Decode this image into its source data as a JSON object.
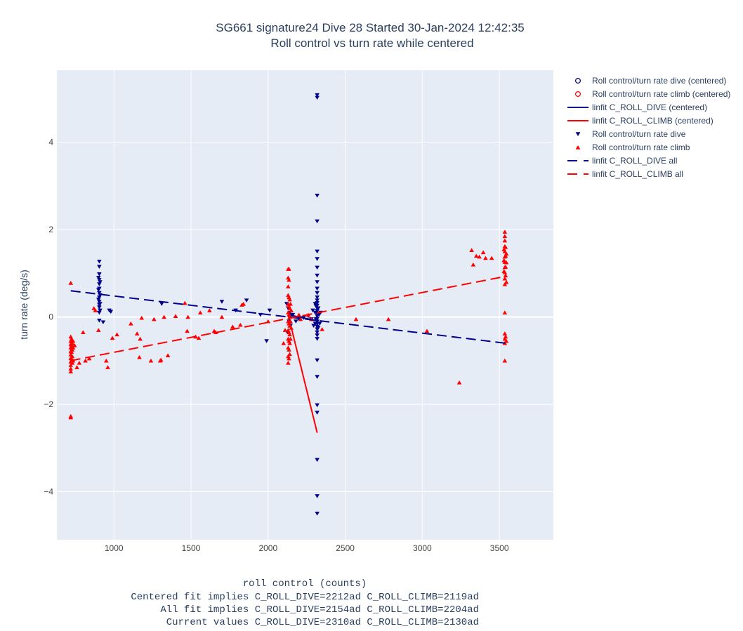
{
  "chart_data": {
    "type": "scatter",
    "title": "SG661 signature24 Dive 28 Started 30-Jan-2024 12:42:35",
    "subtitle": "Roll control vs turn rate while centered",
    "xlabel": "roll control (counts)",
    "xlabel_notes": [
      "Centered fit implies C_ROLL_DIVE=2212ad C_ROLL_CLIMB=2119ad",
      "All fit implies C_ROLL_DIVE=2154ad C_ROLL_CLIMB=2204ad",
      "Current values C_ROLL_DIVE=2310ad C_ROLL_CLIMB=2130ad"
    ],
    "ylabel": "turn rate (deg/s)",
    "xlim": [
      630,
      3850
    ],
    "ylim": [
      -5.1,
      5.65
    ],
    "xticks": [
      1000,
      1500,
      2000,
      2500,
      3000,
      3500
    ],
    "yticks": [
      -4,
      -2,
      0,
      2,
      4
    ],
    "ytick_labels": [
      "−4",
      "−2",
      "0",
      "2",
      "4"
    ],
    "grid": true,
    "legend_position": "right",
    "colors": {
      "dive": "#00008b",
      "climb": "#ff0000",
      "plot_bg": "#e5ecf6",
      "grid": "#ffffff",
      "text": "#2a3f5f"
    },
    "series": [
      {
        "name": "Roll control/turn rate dive (centered)",
        "kind": "points",
        "marker": "circle-open",
        "color": "#00008b",
        "points": []
      },
      {
        "name": "Roll control/turn rate climb (centered)",
        "kind": "points",
        "marker": "circle-open",
        "color": "#ff0000",
        "points": []
      },
      {
        "name": "linfit C_ROLL_DIVE (centered)",
        "kind": "line",
        "dash": "solid",
        "color": "#00008b",
        "points": [
          [
            2130,
            0.05
          ],
          [
            2310,
            -0.08
          ]
        ]
      },
      {
        "name": "linfit C_ROLL_CLIMB (centered)",
        "kind": "line",
        "dash": "solid",
        "color": "#ff0000",
        "points": [
          [
            2130,
            0.05
          ],
          [
            2318,
            -2.65
          ]
        ]
      },
      {
        "name": "Roll control/turn rate dive",
        "kind": "points",
        "marker": "triangle-down",
        "color": "#00008b",
        "points": [
          [
            905,
            1.27
          ],
          [
            905,
            1.15
          ],
          [
            905,
            0.98
          ],
          [
            905,
            0.85
          ],
          [
            905,
            0.75
          ],
          [
            905,
            0.65
          ],
          [
            905,
            0.55
          ],
          [
            905,
            0.45
          ],
          [
            905,
            0.35
          ],
          [
            905,
            0.28
          ],
          [
            905,
            0.22
          ],
          [
            905,
            0.1
          ],
          [
            905,
            -0.08
          ],
          [
            900,
            0.9
          ],
          [
            900,
            0.62
          ],
          [
            900,
            0.4
          ],
          [
            910,
            0.8
          ],
          [
            910,
            0.5
          ],
          [
            910,
            0.3
          ],
          [
            910,
            0.15
          ],
          [
            930,
            -0.12
          ],
          [
            970,
            0.15
          ],
          [
            980,
            0.12
          ],
          [
            1310,
            0.3
          ],
          [
            1700,
            0.35
          ],
          [
            1790,
            0.15
          ],
          [
            1860,
            0.38
          ],
          [
            1950,
            0.05
          ],
          [
            1990,
            -0.55
          ],
          [
            2010,
            0.15
          ],
          [
            2120,
            0.3
          ],
          [
            2125,
            -0.35
          ],
          [
            2130,
            0.2
          ],
          [
            2135,
            -0.1
          ],
          [
            2140,
            0.1
          ],
          [
            2145,
            -0.2
          ],
          [
            2150,
            0.05
          ],
          [
            2160,
            0.05
          ],
          [
            2180,
            -0.1
          ],
          [
            2200,
            -0.05
          ],
          [
            2230,
            -0.02
          ],
          [
            2260,
            0.02
          ],
          [
            2280,
            -0.05
          ],
          [
            2290,
            0.15
          ],
          [
            2295,
            -0.2
          ],
          [
            2318,
            5.08
          ],
          [
            2318,
            5.02
          ],
          [
            2318,
            2.78
          ],
          [
            2318,
            2.19
          ],
          [
            2318,
            1.5
          ],
          [
            2318,
            1.33
          ],
          [
            2318,
            1.13
          ],
          [
            2318,
            0.95
          ],
          [
            2318,
            0.8
          ],
          [
            2318,
            0.65
          ],
          [
            2318,
            0.55
          ],
          [
            2318,
            0.45
          ],
          [
            2318,
            0.38
          ],
          [
            2318,
            0.32
          ],
          [
            2318,
            0.26
          ],
          [
            2318,
            0.2
          ],
          [
            2318,
            0.14
          ],
          [
            2318,
            0.08
          ],
          [
            2318,
            0.02
          ],
          [
            2318,
            -0.04
          ],
          [
            2318,
            -0.1
          ],
          [
            2318,
            -0.16
          ],
          [
            2318,
            -0.22
          ],
          [
            2318,
            -0.28
          ],
          [
            2318,
            -0.35
          ],
          [
            2318,
            -0.42
          ],
          [
            2318,
            -0.5
          ],
          [
            2318,
            -0.99
          ],
          [
            2318,
            -1.37
          ],
          [
            2318,
            -2.02
          ],
          [
            2318,
            -2.19
          ],
          [
            2318,
            -3.27
          ],
          [
            2318,
            -4.1
          ],
          [
            2318,
            -4.5
          ],
          [
            2305,
            0.3
          ],
          [
            2305,
            0.1
          ],
          [
            2305,
            -0.15
          ],
          [
            2310,
            0.25
          ],
          [
            2310,
            -0.05
          ],
          [
            2325,
            0.2
          ],
          [
            2325,
            -0.25
          ],
          [
            2330,
            0.05
          ],
          [
            2335,
            -0.15
          ],
          [
            2340,
            0.1
          ]
        ]
      },
      {
        "name": "Roll control/turn rate climb",
        "kind": "points",
        "marker": "triangle-up",
        "color": "#ff0000",
        "points": [
          [
            720,
            0.78
          ],
          [
            720,
            -0.45
          ],
          [
            720,
            -0.55
          ],
          [
            720,
            -0.62
          ],
          [
            720,
            -0.7
          ],
          [
            720,
            -0.78
          ],
          [
            720,
            -0.86
          ],
          [
            720,
            -0.94
          ],
          [
            720,
            -1.02
          ],
          [
            720,
            -1.1
          ],
          [
            720,
            -1.18
          ],
          [
            720,
            -1.25
          ],
          [
            720,
            -2.27
          ],
          [
            720,
            -2.3
          ],
          [
            725,
            -0.5
          ],
          [
            725,
            -0.65
          ],
          [
            725,
            -0.8
          ],
          [
            725,
            -0.95
          ],
          [
            730,
            -0.6
          ],
          [
            730,
            -0.75
          ],
          [
            730,
            -0.9
          ],
          [
            730,
            -1.05
          ],
          [
            735,
            -0.55
          ],
          [
            735,
            -0.7
          ],
          [
            735,
            -1.0
          ],
          [
            745,
            -0.65
          ],
          [
            760,
            -1.15
          ],
          [
            775,
            -1.05
          ],
          [
            800,
            -0.35
          ],
          [
            815,
            -1.0
          ],
          [
            840,
            -0.95
          ],
          [
            870,
            0.2
          ],
          [
            880,
            0.15
          ],
          [
            900,
            -0.3
          ],
          [
            950,
            -1.0
          ],
          [
            960,
            -1.15
          ],
          [
            990,
            -0.48
          ],
          [
            1020,
            -0.4
          ],
          [
            1110,
            -0.15
          ],
          [
            1150,
            -0.38
          ],
          [
            1165,
            -0.92
          ],
          [
            1170,
            -0.5
          ],
          [
            1180,
            -0.02
          ],
          [
            1240,
            -1.0
          ],
          [
            1260,
            -0.05
          ],
          [
            1300,
            -1.0
          ],
          [
            1305,
            -0.98
          ],
          [
            1325,
            0.0
          ],
          [
            1350,
            -0.88
          ],
          [
            1400,
            0.02
          ],
          [
            1460,
            0.32
          ],
          [
            1475,
            -0.32
          ],
          [
            1480,
            0.0
          ],
          [
            1530,
            -0.45
          ],
          [
            1550,
            -0.48
          ],
          [
            1560,
            0.1
          ],
          [
            1620,
            0.15
          ],
          [
            1650,
            -0.32
          ],
          [
            1660,
            -0.35
          ],
          [
            1700,
            0.0
          ],
          [
            1770,
            -0.22
          ],
          [
            1820,
            -0.18
          ],
          [
            1830,
            0.28
          ],
          [
            1840,
            0.3
          ],
          [
            2000,
            -0.1
          ],
          [
            2100,
            -0.6
          ],
          [
            2110,
            -0.3
          ],
          [
            2130,
            1.1
          ],
          [
            2130,
            0.9
          ],
          [
            2130,
            0.7
          ],
          [
            2130,
            0.5
          ],
          [
            2130,
            0.3
          ],
          [
            2130,
            0.1
          ],
          [
            2130,
            -0.1
          ],
          [
            2130,
            -0.3
          ],
          [
            2130,
            -0.5
          ],
          [
            2130,
            -0.7
          ],
          [
            2130,
            -0.9
          ],
          [
            2130,
            -1.05
          ],
          [
            2135,
            1.1
          ],
          [
            2135,
            0.85
          ],
          [
            2135,
            0.45
          ],
          [
            2135,
            0.25
          ],
          [
            2135,
            0.05
          ],
          [
            2135,
            -0.15
          ],
          [
            2135,
            -0.35
          ],
          [
            2135,
            -0.55
          ],
          [
            2135,
            -0.75
          ],
          [
            2135,
            -0.95
          ],
          [
            2140,
            0.4
          ],
          [
            2140,
            0.2
          ],
          [
            2140,
            0.0
          ],
          [
            2140,
            -0.2
          ],
          [
            2140,
            -0.4
          ],
          [
            2140,
            -0.6
          ],
          [
            2140,
            -0.85
          ],
          [
            2145,
            0.3
          ],
          [
            2145,
            -0.1
          ],
          [
            2145,
            -0.5
          ],
          [
            2150,
            0.15
          ],
          [
            2150,
            -0.25
          ],
          [
            2200,
            0.05
          ],
          [
            2210,
            -0.05
          ],
          [
            2260,
            0.05
          ],
          [
            2280,
            -0.05
          ],
          [
            2350,
            -0.28
          ],
          [
            2570,
            -0.05
          ],
          [
            2780,
            -0.05
          ],
          [
            3030,
            -0.32
          ],
          [
            3240,
            -1.5
          ],
          [
            3320,
            1.53
          ],
          [
            3330,
            1.2
          ],
          [
            3350,
            1.4
          ],
          [
            3370,
            1.38
          ],
          [
            3395,
            1.48
          ],
          [
            3410,
            1.35
          ],
          [
            3450,
            1.35
          ],
          [
            3535,
            1.95
          ],
          [
            3535,
            1.85
          ],
          [
            3535,
            1.75
          ],
          [
            3535,
            1.62
          ],
          [
            3535,
            1.5
          ],
          [
            3535,
            1.38
          ],
          [
            3535,
            1.26
          ],
          [
            3535,
            1.14
          ],
          [
            3535,
            1.02
          ],
          [
            3535,
            0.88
          ],
          [
            3535,
            0.75
          ],
          [
            3535,
            0.1
          ],
          [
            3535,
            -0.38
          ],
          [
            3535,
            -0.5
          ],
          [
            3535,
            -0.6
          ],
          [
            3535,
            -1.0
          ],
          [
            3530,
            1.55
          ],
          [
            3530,
            1.3
          ],
          [
            3530,
            1.05
          ],
          [
            3540,
            1.6
          ],
          [
            3540,
            1.4
          ],
          [
            3540,
            1.15
          ],
          [
            3540,
            0.95
          ],
          [
            3545,
            1.45
          ],
          [
            3545,
            1.25
          ],
          [
            3545,
            0.8
          ],
          [
            3540,
            -0.45
          ],
          [
            3545,
            -0.55
          ]
        ]
      },
      {
        "name": "linfit C_ROLL_DIVE all",
        "kind": "line",
        "dash": "dash",
        "color": "#00008b",
        "points": [
          [
            720,
            0.6
          ],
          [
            3540,
            -0.6
          ]
        ]
      },
      {
        "name": "linfit C_ROLL_CLIMB all",
        "kind": "line",
        "dash": "dash",
        "color": "#ff0000",
        "points": [
          [
            720,
            -1.0
          ],
          [
            3540,
            0.93
          ]
        ]
      }
    ]
  }
}
